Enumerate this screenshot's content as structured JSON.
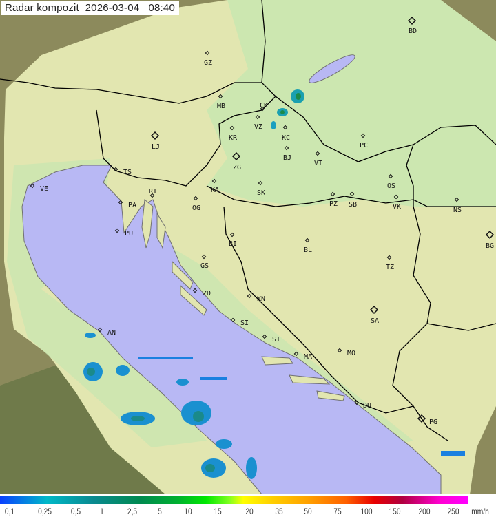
{
  "header": {
    "title": "Radar kompozit",
    "date": "2026-03-04",
    "time": "08:40"
  },
  "map": {
    "colors": {
      "outside_coverage": "#8c8a5c",
      "coverage_land": "#e2e6b0",
      "lowland": "#c8e6b0",
      "sea": "#b8b8f4",
      "border": "#000000",
      "coast": "#707070"
    },
    "cities": [
      "BD",
      "GZ",
      "MB",
      "CK",
      "VZ",
      "KR",
      "KC",
      "LJ",
      "ZG",
      "BJ",
      "VT",
      "PC",
      "TS",
      "VE",
      "RI",
      "KA",
      "SK",
      "OS",
      "PA",
      "OG",
      "PZ",
      "SB",
      "VK",
      "NS",
      "PU",
      "BI",
      "BL",
      "BG",
      "GS",
      "TZ",
      "ZD",
      "KN",
      "SI",
      "SA",
      "AN",
      "ST",
      "MA",
      "MO",
      "DU",
      "PG"
    ]
  },
  "legend": {
    "ticks": [
      "0,1",
      "0,25",
      "0,5",
      "1",
      "2,5",
      "5",
      "10",
      "15",
      "20",
      "35",
      "50",
      "75",
      "100",
      "150",
      "200",
      "250"
    ],
    "unit": "mm/h"
  }
}
